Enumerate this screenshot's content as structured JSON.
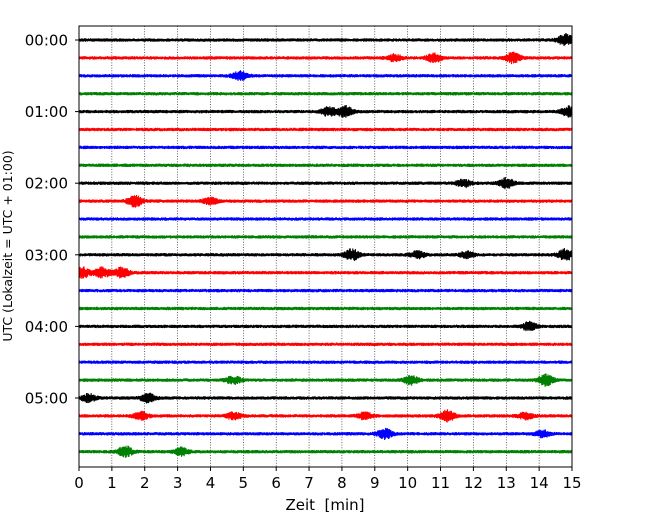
{
  "chart_data": {
    "type": "line",
    "title": "",
    "xlabel": "Zeit  [min]",
    "ylabel": "UTC (Lokalzeit = UTC + 01:00)",
    "xlim": [
      0,
      15
    ],
    "x_ticks": [
      0,
      1,
      2,
      3,
      4,
      5,
      6,
      7,
      8,
      9,
      10,
      11,
      12,
      13,
      14,
      15
    ],
    "x_grid": "dotted vertical lines at each minute",
    "trace_interval_min": 15,
    "trace_colors": [
      "#000000",
      "#ff0000",
      "#0000ff",
      "#008000"
    ],
    "y_tick_labels": [
      "00:00",
      "01:00",
      "02:00",
      "03:00",
      "04:00",
      "05:00"
    ],
    "traces": [
      {
        "start": "00:00",
        "color": "#000000",
        "bursts": [
          [
            14.8,
            1.0
          ]
        ]
      },
      {
        "start": "00:15",
        "color": "#ff0000",
        "bursts": [
          [
            9.6,
            0.6
          ],
          [
            10.8,
            0.8
          ],
          [
            13.2,
            1.0
          ]
        ]
      },
      {
        "start": "00:30",
        "color": "#0000ff",
        "bursts": [
          [
            4.9,
            0.8
          ]
        ]
      },
      {
        "start": "00:45",
        "color": "#008000",
        "bursts": []
      },
      {
        "start": "01:00",
        "color": "#000000",
        "bursts": [
          [
            7.6,
            0.8
          ],
          [
            8.1,
            1.0
          ],
          [
            14.9,
            0.9
          ]
        ]
      },
      {
        "start": "01:15",
        "color": "#ff0000",
        "bursts": []
      },
      {
        "start": "01:30",
        "color": "#0000ff",
        "bursts": []
      },
      {
        "start": "01:45",
        "color": "#008000",
        "bursts": []
      },
      {
        "start": "02:00",
        "color": "#000000",
        "bursts": [
          [
            11.7,
            0.7
          ],
          [
            13.0,
            0.9
          ]
        ]
      },
      {
        "start": "02:15",
        "color": "#ff0000",
        "bursts": [
          [
            1.7,
            1.0
          ],
          [
            4.0,
            0.6
          ]
        ]
      },
      {
        "start": "02:30",
        "color": "#0000ff",
        "bursts": []
      },
      {
        "start": "02:45",
        "color": "#008000",
        "bursts": []
      },
      {
        "start": "03:00",
        "color": "#000000",
        "bursts": [
          [
            8.3,
            1.0
          ],
          [
            10.3,
            0.6
          ],
          [
            11.8,
            0.6
          ],
          [
            14.8,
            1.0
          ]
        ]
      },
      {
        "start": "03:15",
        "color": "#ff0000",
        "bursts": [
          [
            0.1,
            1.0
          ],
          [
            0.7,
            1.0
          ],
          [
            1.3,
            0.9
          ]
        ]
      },
      {
        "start": "03:30",
        "color": "#0000ff",
        "bursts": []
      },
      {
        "start": "03:45",
        "color": "#008000",
        "bursts": []
      },
      {
        "start": "04:00",
        "color": "#000000",
        "bursts": [
          [
            13.7,
            0.8
          ]
        ]
      },
      {
        "start": "04:15",
        "color": "#ff0000",
        "bursts": []
      },
      {
        "start": "04:30",
        "color": "#0000ff",
        "bursts": []
      },
      {
        "start": "04:45",
        "color": "#008000",
        "bursts": [
          [
            4.7,
            0.7
          ],
          [
            10.1,
            0.8
          ],
          [
            14.2,
            1.0
          ]
        ]
      },
      {
        "start": "05:00",
        "color": "#000000",
        "bursts": [
          [
            0.3,
            0.7
          ],
          [
            2.1,
            0.8
          ]
        ]
      },
      {
        "start": "05:15",
        "color": "#ff0000",
        "bursts": [
          [
            1.9,
            0.7
          ],
          [
            4.7,
            0.6
          ],
          [
            8.7,
            0.6
          ],
          [
            11.2,
            1.0
          ],
          [
            13.6,
            0.6
          ]
        ]
      },
      {
        "start": "05:30",
        "color": "#0000ff",
        "bursts": [
          [
            9.3,
            0.9
          ],
          [
            14.1,
            0.6
          ]
        ]
      },
      {
        "start": "05:45",
        "color": "#008000",
        "bursts": [
          [
            1.4,
            1.0
          ],
          [
            3.1,
            0.7
          ]
        ]
      }
    ]
  }
}
